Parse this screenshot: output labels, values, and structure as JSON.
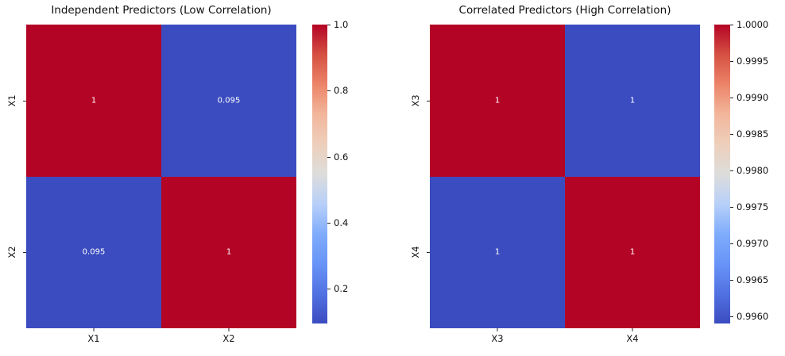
{
  "figure": {
    "background": "#ffffff"
  },
  "colors": {
    "heat_low": "#3b4cc0",
    "heat_high": "#b40426",
    "annotation_text": "#ffffff",
    "axis_text": "#111111",
    "tick_mark": "#262626",
    "colormap_stops": [
      "#3b4cc0",
      "#5171e2",
      "#6894f7",
      "#80acfc",
      "#b8d0f9",
      "#dddddb",
      "#eecfbb",
      "#f2b69b",
      "#ec8469",
      "#d55042",
      "#b40426"
    ]
  },
  "chart_data": [
    {
      "type": "heatmap",
      "title": "Independent Predictors (Low Correlation)",
      "x_labels": [
        "X1",
        "X2"
      ],
      "y_labels": [
        "X1",
        "X2"
      ],
      "matrix": [
        [
          1.0,
          0.095
        ],
        [
          0.095,
          1.0
        ]
      ],
      "annotations": [
        [
          "1",
          "0.095"
        ],
        [
          "0.095",
          "1"
        ]
      ],
      "colorbar": {
        "vmin": 0.095,
        "vmax": 1.0,
        "ticks": [
          {
            "value": 1.0,
            "label": "1.0"
          },
          {
            "value": 0.8,
            "label": "0.8"
          },
          {
            "value": 0.6,
            "label": "0.6"
          },
          {
            "value": 0.4,
            "label": "0.4"
          },
          {
            "value": 0.2,
            "label": "0.2"
          }
        ]
      }
    },
    {
      "type": "heatmap",
      "title": "Correlated Predictors (High Correlation)",
      "x_labels": [
        "X3",
        "X4"
      ],
      "y_labels": [
        "X3",
        "X4"
      ],
      "matrix": [
        [
          1.0,
          0.9959
        ],
        [
          0.9959,
          1.0
        ]
      ],
      "annotations": [
        [
          "1",
          "1"
        ],
        [
          "1",
          "1"
        ]
      ],
      "colorbar": {
        "vmin": 0.9959,
        "vmax": 1.0,
        "ticks": [
          {
            "value": 1.0,
            "label": "1.0000"
          },
          {
            "value": 0.9995,
            "label": "0.9995"
          },
          {
            "value": 0.999,
            "label": "0.9990"
          },
          {
            "value": 0.9985,
            "label": "0.9985"
          },
          {
            "value": 0.998,
            "label": "0.9980"
          },
          {
            "value": 0.9975,
            "label": "0.9975"
          },
          {
            "value": 0.997,
            "label": "0.9970"
          },
          {
            "value": 0.9965,
            "label": "0.9965"
          },
          {
            "value": 0.996,
            "label": "0.9960"
          }
        ]
      }
    }
  ]
}
